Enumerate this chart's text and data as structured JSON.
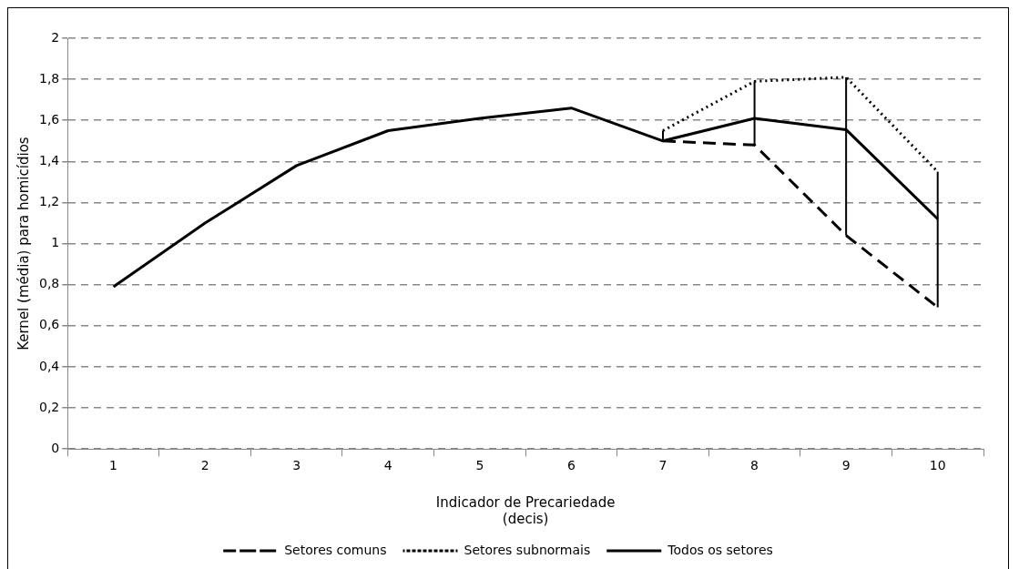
{
  "chart_data": {
    "type": "line",
    "xlabel": "Indicador de Precariedade\n(decis)",
    "ylabel": "Kernel (média) para homicídios",
    "categories": [
      "1",
      "2",
      "3",
      "4",
      "5",
      "6",
      "7",
      "8",
      "9",
      "10"
    ],
    "series": [
      {
        "name": "Setores comuns",
        "color": "#000000",
        "line_style": "dashed",
        "values": [
          null,
          null,
          null,
          null,
          null,
          null,
          1.5,
          1.48,
          1.04,
          0.69
        ]
      },
      {
        "name": "Setores subnormais",
        "color": "#000000",
        "line_style": "dotted",
        "values": [
          null,
          null,
          null,
          null,
          null,
          null,
          1.55,
          1.79,
          1.81,
          1.35
        ]
      },
      {
        "name": "Todos os setores",
        "color": "#000000",
        "line_style": "solid",
        "values": [
          0.79,
          1.1,
          1.38,
          1.55,
          1.61,
          1.66,
          1.5,
          1.61,
          1.555,
          1.12
        ],
        "errors": [
          null,
          null,
          null,
          null,
          null,
          null,
          [
            1.5,
            1.55
          ],
          [
            1.48,
            1.79
          ],
          [
            1.04,
            1.81
          ],
          [
            0.69,
            1.35
          ]
        ]
      }
    ],
    "ylim": [
      0,
      2
    ],
    "yticks": [
      {
        "value": 0,
        "label": "0"
      },
      {
        "value": 0.2,
        "label": "0,2"
      },
      {
        "value": 0.4,
        "label": "0,4"
      },
      {
        "value": 0.6,
        "label": "0,6"
      },
      {
        "value": 0.8,
        "label": "0,8"
      },
      {
        "value": 1,
        "label": "1"
      },
      {
        "value": 1.2,
        "label": "1,2"
      },
      {
        "value": 1.4,
        "label": "1,4"
      },
      {
        "value": 1.6,
        "label": "1,6"
      },
      {
        "value": 1.8,
        "label": "1,8"
      },
      {
        "value": 2,
        "label": "2"
      }
    ],
    "grid": "y",
    "legend": "bottom",
    "marker": "none"
  }
}
